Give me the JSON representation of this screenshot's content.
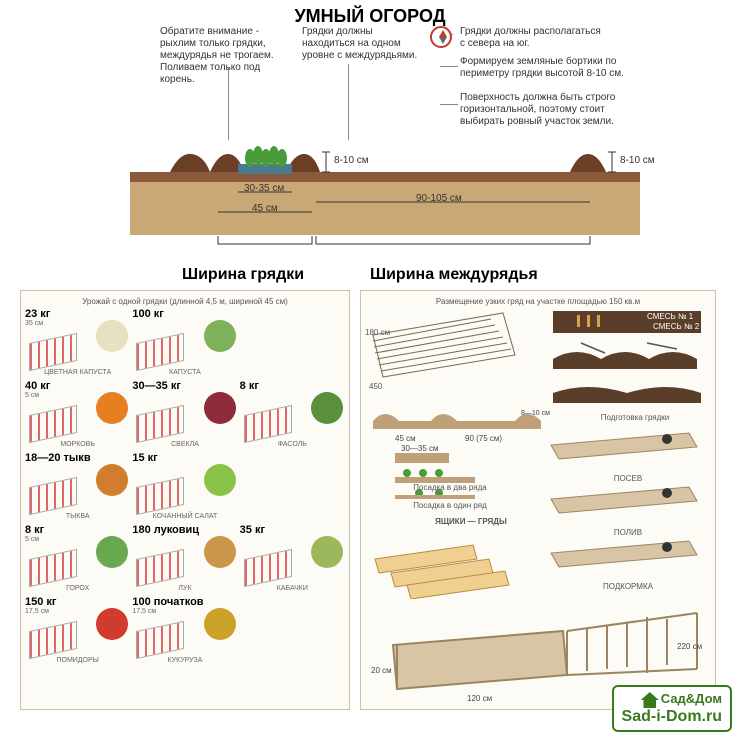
{
  "title": "УМНЫЙ ОГОРОД",
  "notes": {
    "n1": "Обратите внимание - рыхлим только грядки, междурядья не трогаем. Поливаем только под корень.",
    "n2": "Грядки должны находиться на одном уровне с междурядьями.",
    "n3": "Грядки должны располагаться с севера на юг.",
    "n4": "Формируем земляные бортики по периметру грядки высотой 8-10 см.",
    "n5": "Поверхность должна быть строго горизонтальной, поэтому стоит выбирать ровный участок земли."
  },
  "cross_section": {
    "bed_width_label": "Ширина грядки",
    "row_width_label": "Ширина междурядья",
    "inner_bed": "30-35 см",
    "full_bed": "45 см",
    "row_spacing": "90-105 см",
    "border_height_left": "8-10 см",
    "border_height_right": "8-10 см",
    "colors": {
      "soil_top": "#8b5a3c",
      "soil_deep": "#c9a876",
      "border": "#6b3e26",
      "plant": "#4a9b3a"
    }
  },
  "left_panel": {
    "title": "Урожай с одной грядки (длинной 4,5 м, шириной 45 см)",
    "vegetables": [
      {
        "yield": "23 кг",
        "dim": "35 см",
        "name": "ЦВЕТНАЯ КАПУСТА",
        "color": "#e8e0c0"
      },
      {
        "yield": "100 кг",
        "dim": "",
        "name": "КАПУСТА",
        "color": "#7fb05a"
      },
      {
        "yield": "",
        "dim": "",
        "name": "",
        "color": ""
      },
      {
        "yield": "40 кг",
        "dim": "5 см",
        "name": "МОРКОВЬ",
        "color": "#e67e22"
      },
      {
        "yield": "30—35 кг",
        "dim": "",
        "name": "СВЕКЛА",
        "color": "#8e2c3a"
      },
      {
        "yield": "8 кг",
        "dim": "",
        "name": "ФАСОЛЬ",
        "color": "#5a8f3e"
      },
      {
        "yield": "18—20 тыкв",
        "dim": "",
        "name": "ТЫКВА",
        "color": "#d07d2c"
      },
      {
        "yield": "15 кг",
        "dim": "",
        "name": "КОЧАННЫЙ САЛАТ",
        "color": "#8bc34a"
      },
      {
        "yield": "",
        "dim": "",
        "name": "",
        "color": ""
      },
      {
        "yield": "8 кг",
        "dim": "5 см",
        "name": "ГОРОХ",
        "color": "#6aa84f"
      },
      {
        "yield": "180 луковиц",
        "dim": "",
        "name": "ЛУК",
        "color": "#c9964a"
      },
      {
        "yield": "35 кг",
        "dim": "",
        "name": "КАБАЧКИ",
        "color": "#9db85c"
      },
      {
        "yield": "150 кг",
        "dim": "17,5 см",
        "name": "ПОМИДОРЫ",
        "color": "#d13a2e"
      },
      {
        "yield": "100 початков",
        "dim": "17,5 см",
        "name": "КУКУРУЗА",
        "color": "#c9a227"
      },
      {
        "yield": "",
        "dim": "",
        "name": "",
        "color": ""
      }
    ]
  },
  "right_panel": {
    "title": "Размещение узких гряд на участке площадью 150 кв.м",
    "plot_dims": {
      "w": "450",
      "h": "180 см"
    },
    "bed_dims": {
      "full": "45 см",
      "inner": "30—35 см",
      "row": "90 (75 см)",
      "border": "8—10 см"
    },
    "row_labels": {
      "two": "Посадка в два ряда",
      "one": "Посадка в один ряд"
    },
    "boxes_label": "ЯЩИКИ — ГРЯДЫ",
    "frame_dims": {
      "w": "120 см",
      "h": "20 см",
      "post": "220 см"
    },
    "steps": [
      "СМЕСЬ № 1",
      "СМЕСЬ № 2",
      "Подготовка грядки",
      "ПОСЕВ",
      "ПОЛИВ",
      "ПОДКОРМКА"
    ]
  },
  "logo": {
    "top": "Сад&Дом",
    "bottom": "Sad-i-Dom.ru"
  }
}
